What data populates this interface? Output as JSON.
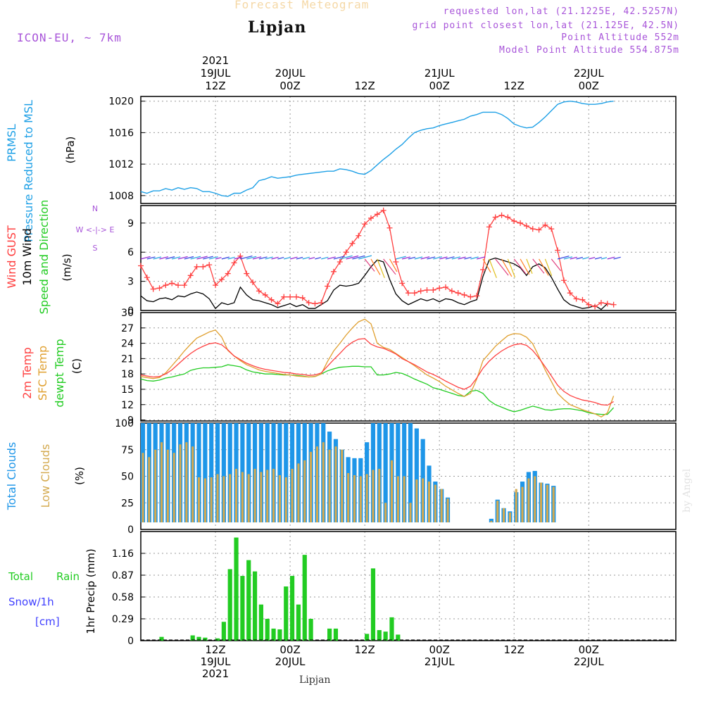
{
  "header": {
    "forecast_title": "Forecast Meteogram",
    "location": "Lipjan",
    "model": "ICON-EU, ~ 7km",
    "requested": "requested lon,lat (21.1225E, 42.5257N)",
    "grid_point": "grid point closest lon,lat (21.125E, 42.5N)",
    "point_altitude": "Point Altitude 552m",
    "model_altitude": "Model Point Altitude 554.875m"
  },
  "credit": "by Angel",
  "footer_location": "Lipjan",
  "colors": {
    "pressure": "#1ea0e6",
    "gust": "#ff4040",
    "wind": "#000000",
    "temp2m": "#ff4040",
    "sfc": "#e0a030",
    "dewpt": "#22cc22",
    "total_cloud": "#1e96e8",
    "low_cloud": "#d4aa50",
    "rain": "#22cc22",
    "snow": "#4040ff",
    "label_purple": "#a855d9"
  },
  "time_axis": {
    "start_hour": 0,
    "end_hour": 86,
    "top_labels": [
      {
        "h": 12,
        "lines": [
          "2021",
          "19JUL",
          "12Z"
        ]
      },
      {
        "h": 24,
        "lines": [
          "20JUL",
          "00Z"
        ]
      },
      {
        "h": 36,
        "lines": [
          "12Z"
        ]
      },
      {
        "h": 48,
        "lines": [
          "21JUL",
          "00Z"
        ]
      },
      {
        "h": 60,
        "lines": [
          "12Z"
        ]
      },
      {
        "h": 72,
        "lines": [
          "22JUL",
          "00Z"
        ]
      }
    ],
    "bottom_labels": [
      {
        "h": 12,
        "lines": [
          "12Z",
          "19JUL",
          "2021"
        ]
      },
      {
        "h": 24,
        "lines": [
          "00Z",
          "20JUL"
        ]
      },
      {
        "h": 36,
        "lines": [
          "12Z"
        ]
      },
      {
        "h": 48,
        "lines": [
          "00Z",
          "21JUL"
        ]
      },
      {
        "h": 60,
        "lines": [
          "12Z"
        ]
      },
      {
        "h": 72,
        "lines": [
          "00Z",
          "22JUL"
        ]
      }
    ]
  },
  "chart_data": [
    {
      "type": "line",
      "name": "pressure",
      "labels": [
        "PRMSL",
        "Pressure Reduced to MSL"
      ],
      "ylabel": "(hPa)",
      "ylim": [
        1007,
        1020.6
      ],
      "yticks": [
        1008,
        1012,
        1016,
        1020
      ],
      "x": [
        0,
        1,
        2,
        3,
        4,
        5,
        6,
        7,
        8,
        9,
        10,
        11,
        12,
        13,
        14,
        15,
        16,
        17,
        18,
        19,
        20,
        21,
        22,
        23,
        24,
        25,
        26,
        27,
        28,
        29,
        30,
        31,
        32,
        33,
        34,
        35,
        36,
        37,
        38,
        39,
        40,
        41,
        42,
        43,
        44,
        45,
        46,
        47,
        48,
        49,
        50,
        51,
        52,
        53,
        54,
        55,
        56,
        57,
        58,
        59,
        60,
        61,
        62,
        63,
        64,
        65,
        66,
        67,
        68,
        69,
        70,
        71,
        72,
        73,
        74,
        75,
        76
      ],
      "values": [
        1008.5,
        1008.3,
        1008.6,
        1008.6,
        1008.9,
        1008.7,
        1009.0,
        1008.8,
        1009.0,
        1008.9,
        1008.5,
        1008.5,
        1008.3,
        1008.0,
        1007.9,
        1008.3,
        1008.3,
        1008.7,
        1009.0,
        1009.9,
        1010.1,
        1010.4,
        1010.2,
        1010.3,
        1010.4,
        1010.6,
        1010.7,
        1010.8,
        1010.9,
        1011.0,
        1011.1,
        1011.1,
        1011.4,
        1011.3,
        1011.1,
        1010.8,
        1010.7,
        1011.2,
        1011.9,
        1012.6,
        1013.2,
        1013.9,
        1014.5,
        1015.3,
        1016.0,
        1016.3,
        1016.5,
        1016.6,
        1016.9,
        1017.1,
        1017.3,
        1017.5,
        1017.7,
        1018.1,
        1018.3,
        1018.6,
        1018.6,
        1018.6,
        1018.3,
        1017.8,
        1017.1,
        1016.8,
        1016.6,
        1016.7,
        1017.3,
        1018.0,
        1018.8,
        1019.6,
        1019.9,
        1020.0,
        1019.9,
        1019.7,
        1019.6,
        1019.6,
        1019.7,
        1019.9,
        1020.0
      ]
    },
    {
      "type": "line",
      "name": "wind",
      "labels": [
        "Wind GUST",
        "10m Wind",
        "Speed and Direction"
      ],
      "ylabel": "(m/s)",
      "ylim": [
        0,
        10.8
      ],
      "yticks": [
        0,
        3,
        6,
        9
      ],
      "compass": [
        "N",
        "W <-|-> E",
        "S"
      ],
      "gust_x": [
        0,
        1,
        2,
        3,
        4,
        5,
        6,
        7,
        8,
        9,
        10,
        11,
        12,
        13,
        14,
        15,
        16,
        17,
        18,
        19,
        20,
        21,
        22,
        23,
        24,
        25,
        26,
        27,
        28,
        29,
        30,
        31,
        32,
        33,
        34,
        35,
        36,
        37,
        38,
        39,
        40,
        41,
        42,
        43,
        44,
        45,
        46,
        47,
        48,
        49,
        50,
        51,
        52,
        53,
        54,
        55,
        56,
        57,
        58,
        59,
        60,
        61,
        62,
        63,
        64,
        65,
        66,
        67,
        68,
        69,
        70,
        71,
        72,
        73,
        74,
        75,
        76
      ],
      "gust": [
        4.6,
        3.4,
        2.2,
        2.3,
        2.6,
        2.8,
        2.6,
        2.6,
        3.6,
        4.5,
        4.5,
        4.7,
        2.6,
        3.2,
        3.8,
        4.9,
        5.6,
        3.8,
        2.9,
        2.0,
        1.6,
        1.1,
        0.7,
        1.4,
        1.4,
        1.4,
        1.3,
        0.8,
        0.7,
        0.8,
        2.5,
        4.0,
        5.0,
        6.0,
        6.9,
        7.7,
        8.9,
        9.5,
        9.9,
        10.3,
        8.5,
        5.0,
        2.8,
        1.8,
        1.8,
        2.0,
        2.1,
        2.1,
        2.3,
        2.4,
        2.0,
        1.8,
        1.6,
        1.4,
        1.5,
        4.2,
        8.6,
        9.6,
        9.8,
        9.6,
        9.2,
        9.0,
        8.7,
        8.4,
        8.3,
        8.8,
        8.4,
        6.2,
        3.1,
        1.8,
        1.2,
        1.1,
        0.6,
        0.4,
        0.8,
        0.7,
        0.6
      ],
      "wind_x": [
        0,
        1,
        2,
        3,
        4,
        5,
        6,
        7,
        8,
        9,
        10,
        11,
        12,
        13,
        14,
        15,
        16,
        17,
        18,
        19,
        20,
        21,
        22,
        23,
        24,
        25,
        26,
        27,
        28,
        29,
        30,
        31,
        32,
        33,
        34,
        35,
        36,
        37,
        38,
        39,
        40,
        41,
        42,
        43,
        44,
        45,
        46,
        47,
        48,
        49,
        50,
        51,
        52,
        53,
        54,
        55,
        56,
        57,
        58,
        59,
        60,
        61,
        62,
        63,
        64,
        65,
        66,
        67,
        68,
        69,
        70,
        71,
        72,
        73,
        74,
        75,
        76
      ],
      "wind": [
        1.5,
        1.0,
        0.9,
        1.2,
        1.3,
        1.1,
        1.5,
        1.4,
        1.7,
        1.9,
        1.7,
        1.2,
        0.2,
        0.8,
        0.6,
        0.8,
        2.4,
        1.6,
        1.1,
        1.0,
        0.8,
        0.6,
        0.3,
        0.5,
        0.7,
        0.4,
        0.6,
        0.2,
        0.2,
        0.6,
        1.0,
        2.1,
        2.6,
        2.5,
        2.6,
        2.8,
        3.6,
        4.5,
        5.2,
        5.0,
        3.2,
        1.7,
        1.0,
        0.6,
        0.9,
        1.2,
        1.0,
        1.2,
        0.9,
        1.2,
        1.1,
        0.8,
        0.6,
        0.9,
        1.1,
        3.5,
        5.2,
        5.4,
        5.2,
        5.0,
        4.8,
        4.4,
        3.6,
        4.5,
        4.8,
        4.4,
        3.4,
        2.2,
        1.1,
        0.6,
        0.4,
        0.2,
        0.3,
        0.5,
        0.1,
        0.7,
        0.6
      ]
    },
    {
      "type": "line",
      "name": "temperature",
      "labels": [
        "2m Temp",
        "SFC Temp",
        "dewpt Temp"
      ],
      "ylabel": "(C)",
      "ylim": [
        8.8,
        30
      ],
      "yticks": [
        9,
        12,
        15,
        18,
        21,
        24,
        27,
        30
      ],
      "x": [
        0,
        1,
        2,
        3,
        4,
        5,
        6,
        7,
        8,
        9,
        10,
        11,
        12,
        13,
        14,
        15,
        16,
        17,
        18,
        19,
        20,
        21,
        22,
        23,
        24,
        25,
        26,
        27,
        28,
        29,
        30,
        31,
        32,
        33,
        34,
        35,
        36,
        37,
        38,
        39,
        40,
        41,
        42,
        43,
        44,
        45,
        46,
        47,
        48,
        49,
        50,
        51,
        52,
        53,
        54,
        55,
        56,
        57,
        58,
        59,
        60,
        61,
        62,
        63,
        64,
        65,
        66,
        67,
        68,
        69,
        70,
        71,
        72,
        73,
        74,
        75,
        76
      ],
      "t2m": [
        17.8,
        17.6,
        17.4,
        17.5,
        18.0,
        18.8,
        19.9,
        21.0,
        22.0,
        22.8,
        23.4,
        23.9,
        24.1,
        23.7,
        22.7,
        21.5,
        20.8,
        20.1,
        19.6,
        19.2,
        18.9,
        18.7,
        18.5,
        18.3,
        18.2,
        18.0,
        17.9,
        17.7,
        17.8,
        18.2,
        19.5,
        20.8,
        22.0,
        23.3,
        24.2,
        24.8,
        24.9,
        23.8,
        23.3,
        23.0,
        22.5,
        21.9,
        21.0,
        20.4,
        19.8,
        19.1,
        18.4,
        17.9,
        17.3,
        16.6,
        16.0,
        15.4,
        15.0,
        15.6,
        17.2,
        19.1,
        20.5,
        21.6,
        22.5,
        23.2,
        23.7,
        23.9,
        23.6,
        22.6,
        21.1,
        19.4,
        17.6,
        15.8,
        14.6,
        13.8,
        13.3,
        12.9,
        12.7,
        12.4,
        12.0,
        11.9,
        12.6
      ],
      "sfc": [
        17.5,
        17.3,
        17.1,
        17.3,
        18.2,
        19.6,
        21.0,
        22.5,
        23.8,
        25.0,
        25.6,
        26.2,
        26.6,
        25.2,
        22.6,
        21.5,
        20.6,
        19.8,
        19.3,
        18.8,
        18.5,
        18.3,
        18.1,
        17.9,
        17.8,
        17.6,
        17.5,
        17.4,
        17.5,
        18.0,
        20.4,
        22.5,
        24.0,
        25.6,
        27.0,
        28.2,
        28.7,
        27.8,
        24.0,
        23.2,
        22.8,
        22.0,
        21.2,
        20.4,
        19.6,
        18.7,
        17.8,
        17.2,
        16.5,
        15.6,
        14.9,
        14.2,
        13.6,
        14.2,
        17.0,
        20.6,
        22.0,
        23.4,
        24.5,
        25.5,
        25.9,
        25.8,
        25.2,
        23.9,
        21.4,
        18.8,
        16.5,
        14.2,
        13.0,
        12.0,
        11.5,
        11.0,
        10.6,
        10.2,
        9.6,
        10.4,
        13.7
      ],
      "dew": [
        17.0,
        16.7,
        16.6,
        16.8,
        17.2,
        17.4,
        17.7,
        18.0,
        18.7,
        19.0,
        19.2,
        19.2,
        19.3,
        19.4,
        19.8,
        19.6,
        19.4,
        18.8,
        18.4,
        18.2,
        18.0,
        18.0,
        17.9,
        17.8,
        17.8,
        17.7,
        17.6,
        17.4,
        17.5,
        18.0,
        18.6,
        19.0,
        19.3,
        19.4,
        19.5,
        19.5,
        19.4,
        19.4,
        17.8,
        17.8,
        18.0,
        18.3,
        18.1,
        17.6,
        17.0,
        16.5,
        16.0,
        15.3,
        15.0,
        14.6,
        14.2,
        13.8,
        13.6,
        14.6,
        14.8,
        14.2,
        12.8,
        12.0,
        11.5,
        11.0,
        10.6,
        10.9,
        11.3,
        11.7,
        11.4,
        11.0,
        10.9,
        11.1,
        11.2,
        11.2,
        11.0,
        10.8,
        10.4,
        10.2,
        10.1,
        10.1,
        11.4
      ]
    },
    {
      "type": "bar",
      "name": "clouds",
      "labels": [
        "Total Clouds",
        "Low Clouds"
      ],
      "ylabel": "(%)",
      "ylim": [
        0,
        100
      ],
      "yticks": [
        0,
        25,
        50,
        75,
        100
      ],
      "x": [
        0,
        1,
        2,
        3,
        4,
        5,
        6,
        7,
        8,
        9,
        10,
        11,
        12,
        13,
        14,
        15,
        16,
        17,
        18,
        19,
        20,
        21,
        22,
        23,
        24,
        25,
        26,
        27,
        28,
        29,
        30,
        31,
        32,
        33,
        34,
        35,
        36,
        37,
        38,
        39,
        40,
        41,
        42,
        43,
        44,
        45,
        46,
        47,
        48,
        49,
        50,
        51,
        52,
        53,
        54,
        55,
        56,
        57,
        58,
        59,
        60,
        61,
        62,
        63,
        64,
        65,
        66,
        67,
        68,
        69,
        70,
        71,
        72,
        73,
        74,
        75,
        76
      ],
      "total": [
        100,
        100,
        100,
        100,
        100,
        100,
        100,
        100,
        100,
        100,
        100,
        100,
        100,
        100,
        100,
        100,
        100,
        100,
        100,
        100,
        100,
        100,
        100,
        100,
        100,
        100,
        100,
        100,
        100,
        100,
        92,
        85,
        75,
        68,
        67,
        67,
        82,
        100,
        100,
        100,
        100,
        100,
        100,
        100,
        95,
        85,
        60,
        45,
        38,
        30,
        3,
        0,
        0,
        0,
        0,
        5,
        10,
        28,
        20,
        17,
        35,
        45,
        54,
        55,
        44,
        43,
        41,
        0,
        0,
        0,
        0,
        0,
        0,
        0,
        0,
        0,
        0
      ],
      "low": [
        72,
        68,
        75,
        82,
        75,
        72,
        80,
        82,
        78,
        49,
        48,
        49,
        52,
        50,
        52,
        57,
        54,
        52,
        57,
        54,
        56,
        57,
        51,
        49,
        57,
        62,
        65,
        73,
        78,
        82,
        75,
        78,
        75,
        53,
        51,
        50,
        52,
        56,
        57,
        25,
        65,
        50,
        50,
        25,
        47,
        48,
        45,
        42,
        38,
        29,
        2,
        0,
        0,
        0,
        0,
        3,
        8,
        27,
        20,
        16,
        38,
        40,
        48,
        50,
        44,
        42,
        40,
        0,
        0,
        0,
        0,
        0,
        0,
        0,
        0,
        0,
        0
      ]
    },
    {
      "type": "bar",
      "name": "precip",
      "labels": [
        "Total",
        "Rain",
        "Snow/1h",
        "[cm]"
      ],
      "ylabel": "1hr Precip (mm)",
      "ylim": [
        0,
        1.45
      ],
      "yticks": [
        0,
        0.29,
        0.58,
        0.87,
        1.16
      ],
      "x": [
        0,
        1,
        2,
        3,
        4,
        5,
        6,
        7,
        8,
        9,
        10,
        11,
        12,
        13,
        14,
        15,
        16,
        17,
        18,
        19,
        20,
        21,
        22,
        23,
        24,
        25,
        26,
        27,
        28,
        29,
        30,
        31,
        32,
        33,
        34,
        35,
        36,
        37,
        38,
        39,
        40,
        41,
        42,
        43,
        44,
        45,
        46,
        47,
        48,
        49,
        50,
        51,
        52,
        53,
        54,
        55,
        56,
        57,
        58,
        59,
        60,
        61,
        62,
        63,
        64,
        65,
        66,
        67,
        68,
        69,
        70,
        71,
        72,
        73,
        74,
        75,
        76
      ],
      "rain": [
        0,
        0,
        0,
        0.05,
        0,
        0,
        0,
        0,
        0.07,
        0.05,
        0.04,
        0,
        0.03,
        0.25,
        0.95,
        1.37,
        0.86,
        1.07,
        0.92,
        0.48,
        0.29,
        0.16,
        0.15,
        0.72,
        0.86,
        0.48,
        1.14,
        0.29,
        0,
        0,
        0.16,
        0.16,
        0,
        0,
        0,
        0,
        0.09,
        0.96,
        0.14,
        0.12,
        0.31,
        0.08,
        0,
        0,
        0,
        0,
        0,
        0,
        0,
        0,
        0,
        0,
        0,
        0,
        0,
        0,
        0,
        0,
        0,
        0,
        0,
        0,
        0,
        0,
        0,
        0,
        0,
        0,
        0,
        0,
        0,
        0,
        0,
        0,
        0,
        0,
        0
      ]
    }
  ]
}
